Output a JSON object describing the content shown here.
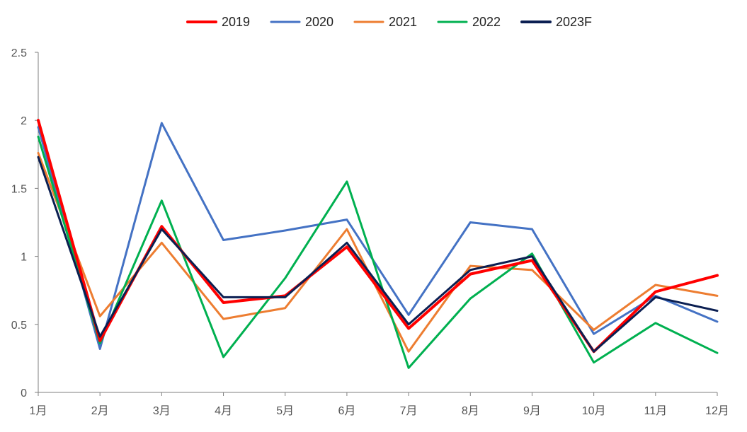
{
  "chart_data": {
    "type": "line",
    "categories": [
      "1月",
      "2月",
      "3月",
      "4月",
      "5月",
      "6月",
      "7月",
      "8月",
      "9月",
      "10月",
      "11月",
      "12月"
    ],
    "ylim": [
      0,
      2.5
    ],
    "yticks": [
      "0",
      "0.5",
      "1",
      "1.5",
      "2",
      "2.5"
    ],
    "grid": false,
    "legend_position": "top",
    "series": [
      {
        "name": "2019",
        "color": "#ff0000",
        "values": [
          2.0,
          0.38,
          1.22,
          0.66,
          0.71,
          1.07,
          0.47,
          0.87,
          0.97,
          0.3,
          0.74,
          0.86
        ]
      },
      {
        "name": "2020",
        "color": "#4472c4",
        "values": [
          1.95,
          0.32,
          1.98,
          1.12,
          1.19,
          1.27,
          0.57,
          1.25,
          1.2,
          0.43,
          0.71,
          0.52
        ]
      },
      {
        "name": "2021",
        "color": "#ed7d31",
        "values": [
          1.76,
          0.56,
          1.1,
          0.54,
          0.62,
          1.2,
          0.3,
          0.93,
          0.9,
          0.46,
          0.79,
          0.71
        ]
      },
      {
        "name": "2022",
        "color": "#00b050",
        "values": [
          1.88,
          0.36,
          1.41,
          0.26,
          0.84,
          1.55,
          0.18,
          0.69,
          1.02,
          0.22,
          0.51,
          0.29
        ]
      },
      {
        "name": "2023F",
        "color": "#0b1f52",
        "values": [
          1.73,
          0.41,
          1.2,
          0.7,
          0.7,
          1.1,
          0.5,
          0.9,
          1.0,
          0.3,
          0.7,
          0.6
        ]
      }
    ]
  }
}
